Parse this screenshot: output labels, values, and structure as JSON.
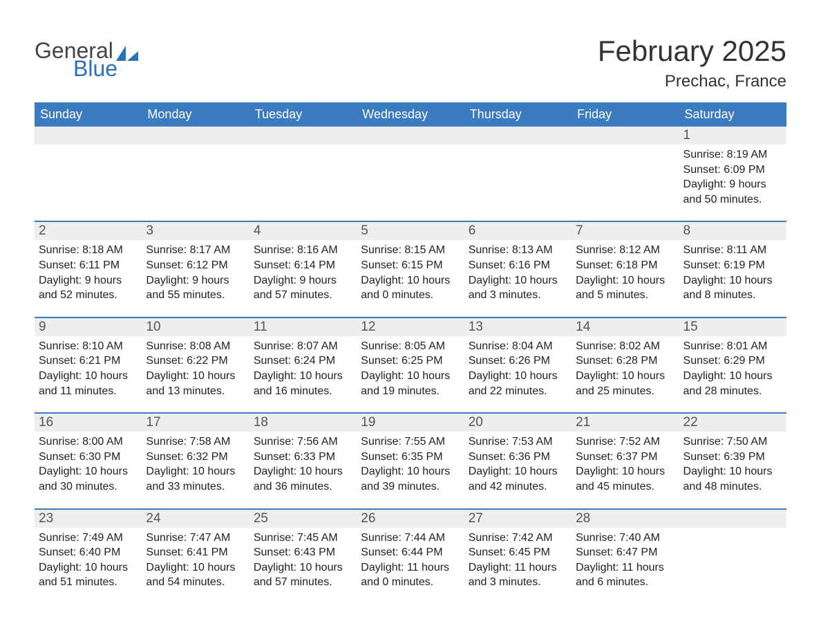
{
  "logo": {
    "text1": "General",
    "text2": "Blue",
    "sail_color": "#2a71b8"
  },
  "title": "February 2025",
  "location": "Prechac, France",
  "colors": {
    "header_bg": "#3b7bbf",
    "header_text": "#ffffff",
    "daynum_bg": "#eeeeee",
    "daynum_text": "#555555",
    "text": "#222222",
    "week_border": "#3b7bbf"
  },
  "day_names": [
    "Sunday",
    "Monday",
    "Tuesday",
    "Wednesday",
    "Thursday",
    "Friday",
    "Saturday"
  ],
  "weeks": [
    [
      {
        "day": "",
        "sunrise": "",
        "sunset": "",
        "daylight1": "",
        "daylight2": ""
      },
      {
        "day": "",
        "sunrise": "",
        "sunset": "",
        "daylight1": "",
        "daylight2": ""
      },
      {
        "day": "",
        "sunrise": "",
        "sunset": "",
        "daylight1": "",
        "daylight2": ""
      },
      {
        "day": "",
        "sunrise": "",
        "sunset": "",
        "daylight1": "",
        "daylight2": ""
      },
      {
        "day": "",
        "sunrise": "",
        "sunset": "",
        "daylight1": "",
        "daylight2": ""
      },
      {
        "day": "",
        "sunrise": "",
        "sunset": "",
        "daylight1": "",
        "daylight2": ""
      },
      {
        "day": "1",
        "sunrise": "Sunrise: 8:19 AM",
        "sunset": "Sunset: 6:09 PM",
        "daylight1": "Daylight: 9 hours",
        "daylight2": "and 50 minutes."
      }
    ],
    [
      {
        "day": "2",
        "sunrise": "Sunrise: 8:18 AM",
        "sunset": "Sunset: 6:11 PM",
        "daylight1": "Daylight: 9 hours",
        "daylight2": "and 52 minutes."
      },
      {
        "day": "3",
        "sunrise": "Sunrise: 8:17 AM",
        "sunset": "Sunset: 6:12 PM",
        "daylight1": "Daylight: 9 hours",
        "daylight2": "and 55 minutes."
      },
      {
        "day": "4",
        "sunrise": "Sunrise: 8:16 AM",
        "sunset": "Sunset: 6:14 PM",
        "daylight1": "Daylight: 9 hours",
        "daylight2": "and 57 minutes."
      },
      {
        "day": "5",
        "sunrise": "Sunrise: 8:15 AM",
        "sunset": "Sunset: 6:15 PM",
        "daylight1": "Daylight: 10 hours",
        "daylight2": "and 0 minutes."
      },
      {
        "day": "6",
        "sunrise": "Sunrise: 8:13 AM",
        "sunset": "Sunset: 6:16 PM",
        "daylight1": "Daylight: 10 hours",
        "daylight2": "and 3 minutes."
      },
      {
        "day": "7",
        "sunrise": "Sunrise: 8:12 AM",
        "sunset": "Sunset: 6:18 PM",
        "daylight1": "Daylight: 10 hours",
        "daylight2": "and 5 minutes."
      },
      {
        "day": "8",
        "sunrise": "Sunrise: 8:11 AM",
        "sunset": "Sunset: 6:19 PM",
        "daylight1": "Daylight: 10 hours",
        "daylight2": "and 8 minutes."
      }
    ],
    [
      {
        "day": "9",
        "sunrise": "Sunrise: 8:10 AM",
        "sunset": "Sunset: 6:21 PM",
        "daylight1": "Daylight: 10 hours",
        "daylight2": "and 11 minutes."
      },
      {
        "day": "10",
        "sunrise": "Sunrise: 8:08 AM",
        "sunset": "Sunset: 6:22 PM",
        "daylight1": "Daylight: 10 hours",
        "daylight2": "and 13 minutes."
      },
      {
        "day": "11",
        "sunrise": "Sunrise: 8:07 AM",
        "sunset": "Sunset: 6:24 PM",
        "daylight1": "Daylight: 10 hours",
        "daylight2": "and 16 minutes."
      },
      {
        "day": "12",
        "sunrise": "Sunrise: 8:05 AM",
        "sunset": "Sunset: 6:25 PM",
        "daylight1": "Daylight: 10 hours",
        "daylight2": "and 19 minutes."
      },
      {
        "day": "13",
        "sunrise": "Sunrise: 8:04 AM",
        "sunset": "Sunset: 6:26 PM",
        "daylight1": "Daylight: 10 hours",
        "daylight2": "and 22 minutes."
      },
      {
        "day": "14",
        "sunrise": "Sunrise: 8:02 AM",
        "sunset": "Sunset: 6:28 PM",
        "daylight1": "Daylight: 10 hours",
        "daylight2": "and 25 minutes."
      },
      {
        "day": "15",
        "sunrise": "Sunrise: 8:01 AM",
        "sunset": "Sunset: 6:29 PM",
        "daylight1": "Daylight: 10 hours",
        "daylight2": "and 28 minutes."
      }
    ],
    [
      {
        "day": "16",
        "sunrise": "Sunrise: 8:00 AM",
        "sunset": "Sunset: 6:30 PM",
        "daylight1": "Daylight: 10 hours",
        "daylight2": "and 30 minutes."
      },
      {
        "day": "17",
        "sunrise": "Sunrise: 7:58 AM",
        "sunset": "Sunset: 6:32 PM",
        "daylight1": "Daylight: 10 hours",
        "daylight2": "and 33 minutes."
      },
      {
        "day": "18",
        "sunrise": "Sunrise: 7:56 AM",
        "sunset": "Sunset: 6:33 PM",
        "daylight1": "Daylight: 10 hours",
        "daylight2": "and 36 minutes."
      },
      {
        "day": "19",
        "sunrise": "Sunrise: 7:55 AM",
        "sunset": "Sunset: 6:35 PM",
        "daylight1": "Daylight: 10 hours",
        "daylight2": "and 39 minutes."
      },
      {
        "day": "20",
        "sunrise": "Sunrise: 7:53 AM",
        "sunset": "Sunset: 6:36 PM",
        "daylight1": "Daylight: 10 hours",
        "daylight2": "and 42 minutes."
      },
      {
        "day": "21",
        "sunrise": "Sunrise: 7:52 AM",
        "sunset": "Sunset: 6:37 PM",
        "daylight1": "Daylight: 10 hours",
        "daylight2": "and 45 minutes."
      },
      {
        "day": "22",
        "sunrise": "Sunrise: 7:50 AM",
        "sunset": "Sunset: 6:39 PM",
        "daylight1": "Daylight: 10 hours",
        "daylight2": "and 48 minutes."
      }
    ],
    [
      {
        "day": "23",
        "sunrise": "Sunrise: 7:49 AM",
        "sunset": "Sunset: 6:40 PM",
        "daylight1": "Daylight: 10 hours",
        "daylight2": "and 51 minutes."
      },
      {
        "day": "24",
        "sunrise": "Sunrise: 7:47 AM",
        "sunset": "Sunset: 6:41 PM",
        "daylight1": "Daylight: 10 hours",
        "daylight2": "and 54 minutes."
      },
      {
        "day": "25",
        "sunrise": "Sunrise: 7:45 AM",
        "sunset": "Sunset: 6:43 PM",
        "daylight1": "Daylight: 10 hours",
        "daylight2": "and 57 minutes."
      },
      {
        "day": "26",
        "sunrise": "Sunrise: 7:44 AM",
        "sunset": "Sunset: 6:44 PM",
        "daylight1": "Daylight: 11 hours",
        "daylight2": "and 0 minutes."
      },
      {
        "day": "27",
        "sunrise": "Sunrise: 7:42 AM",
        "sunset": "Sunset: 6:45 PM",
        "daylight1": "Daylight: 11 hours",
        "daylight2": "and 3 minutes."
      },
      {
        "day": "28",
        "sunrise": "Sunrise: 7:40 AM",
        "sunset": "Sunset: 6:47 PM",
        "daylight1": "Daylight: 11 hours",
        "daylight2": "and 6 minutes."
      },
      {
        "day": "",
        "sunrise": "",
        "sunset": "",
        "daylight1": "",
        "daylight2": ""
      }
    ]
  ]
}
